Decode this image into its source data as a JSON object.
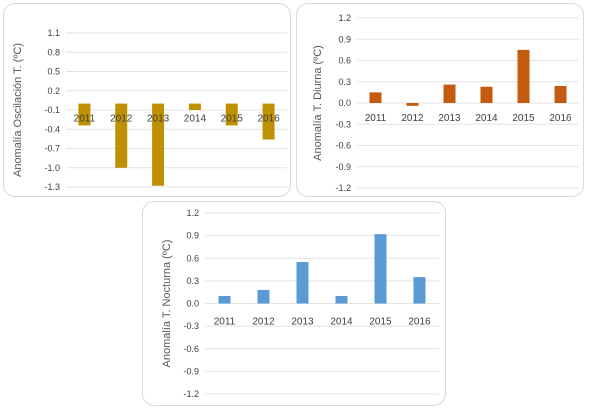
{
  "chart_data": [
    {
      "type": "bar",
      "categories": [
        "2011",
        "2012",
        "2013",
        "2014",
        "2015",
        "2016"
      ],
      "values": [
        -0.34,
        -1.0,
        -1.28,
        -0.1,
        -0.34,
        -0.56
      ],
      "ylabel": "Anomalía Oscilación T. (ºC)",
      "yticks": [
        "1.1",
        "0.8",
        "0.5",
        "0.2",
        "-0.1",
        "-0.4",
        "-0.7",
        "-1.0",
        "-1.3"
      ],
      "ylim": [
        -1.3,
        1.1
      ],
      "grid": true,
      "color": "#bf9000"
    },
    {
      "type": "bar",
      "categories": [
        "2011",
        "2012",
        "2013",
        "2014",
        "2015",
        "2016"
      ],
      "values": [
        0.15,
        -0.04,
        0.26,
        0.23,
        0.75,
        0.24
      ],
      "ylabel": "Anomalía T. Diurna (ºC)",
      "yticks": [
        "1.2",
        "0.9",
        "0.6",
        "0.3",
        "0.0",
        "-0.3",
        "-0.6",
        "-0.9",
        "-1.2"
      ],
      "ylim": [
        -1.2,
        1.2
      ],
      "grid": true,
      "color": "#c55a11"
    },
    {
      "type": "bar",
      "categories": [
        "2011",
        "2012",
        "2013",
        "2014",
        "2015",
        "2016"
      ],
      "values": [
        0.1,
        0.18,
        0.55,
        0.1,
        0.92,
        0.35
      ],
      "ylabel": "Anomalía T. Nocturna (ºC)",
      "yticks": [
        "1.2",
        "0.9",
        "0.6",
        "0.3",
        "0.0",
        "-0.3",
        "-0.6",
        "-0.9",
        "-1.2"
      ],
      "ylim": [
        -1.2,
        1.2
      ],
      "grid": true,
      "color": "#5b9bd5"
    }
  ]
}
